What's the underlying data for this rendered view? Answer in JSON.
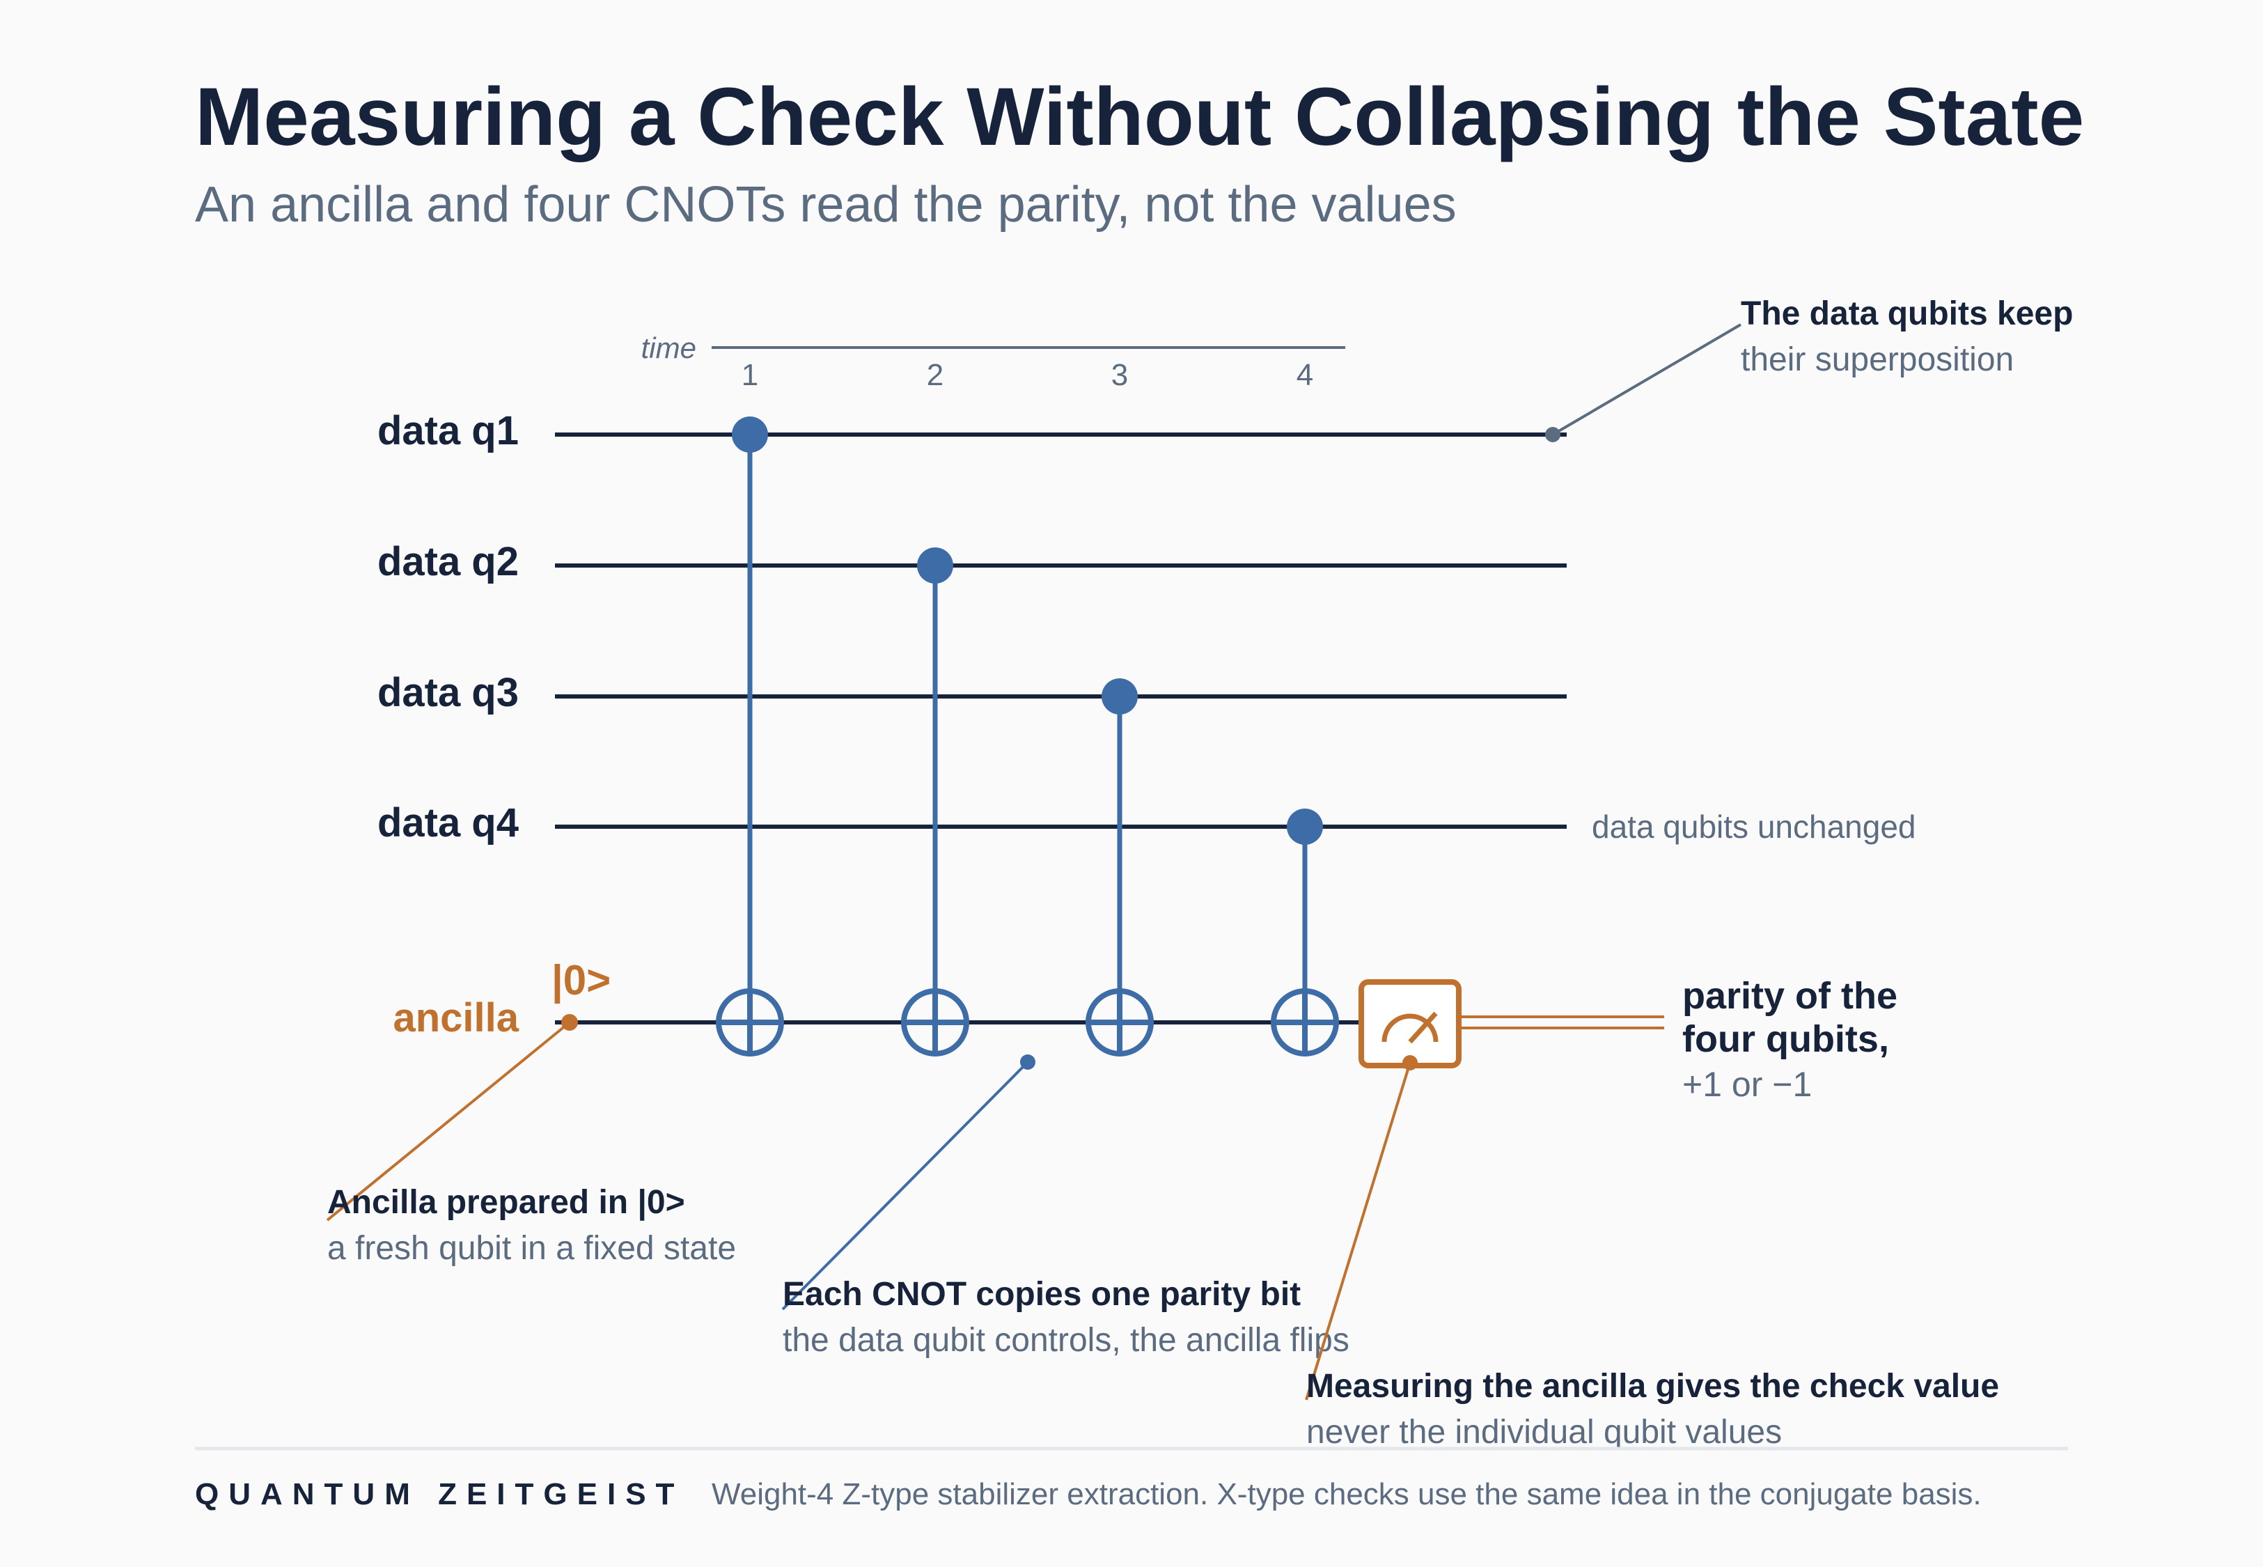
{
  "header": {
    "title": "Measuring a Check Without Collapsing the State",
    "subtitle": "An ancilla and four CNOTs read the parity, not the values"
  },
  "time_axis": {
    "label": "time",
    "steps": [
      "1",
      "2",
      "3",
      "4"
    ]
  },
  "wires": {
    "data": [
      "data q1",
      "data q2",
      "data q3",
      "data q4"
    ],
    "ancilla": "ancilla",
    "ancilla_init": "|0>"
  },
  "annotations": {
    "data_keep": {
      "head": "The data qubits keep",
      "sub": "their superposition"
    },
    "data_unchanged": "data qubits unchanged",
    "parity": {
      "line1": "parity of the",
      "line2": "four qubits,",
      "sub": "+1 or −1"
    },
    "ancilla_prep": {
      "head": "Ancilla prepared in |0>",
      "sub": "a fresh qubit in a fixed state"
    },
    "cnot": {
      "head": "Each CNOT copies one parity bit",
      "sub": "the data qubit controls, the ancilla flips"
    },
    "measure": {
      "head": "Measuring the ancilla gives the check value",
      "sub": "never the individual qubit values"
    }
  },
  "footer": {
    "brand": "QUANTUM ZEITGEIST",
    "note": "Weight-4 Z-type stabilizer extraction. X-type checks use the same idea in the conjugate basis."
  },
  "colors": {
    "ink": "#17233b",
    "muted": "#5b6b80",
    "blue": "#3d6ca6",
    "orange": "#c0712e",
    "background": "#fafafa"
  }
}
